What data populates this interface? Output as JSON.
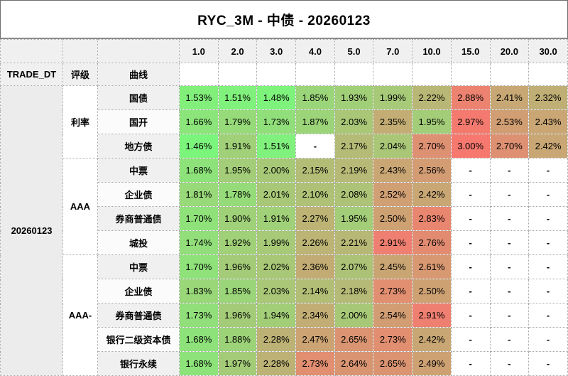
{
  "title": "RYC_3M - 中债 - 20260123",
  "table_header": {
    "trade_dt_label": "TRADE_DT",
    "rating_label": "评级",
    "curve_label": "曲线",
    "trade_dt_value": "20260123"
  },
  "chart_data": {
    "type": "heatmap",
    "title": "RYC_3M - 中债 - 20260123",
    "unit": "percent",
    "columns": [
      "1.0",
      "2.0",
      "3.0",
      "4.0",
      "5.0",
      "7.0",
      "10.0",
      "15.0",
      "20.0",
      "30.0"
    ],
    "missing_marker": "-",
    "color_scale": {
      "min": 1.46,
      "max": 3.0,
      "low": "#7cf57c",
      "high": "#f6786f",
      "missing_bg": "#ffffff"
    },
    "groups": [
      {
        "rating": "利率",
        "rows": [
          {
            "curve": "国债",
            "values": [
              "1.53%",
              "1.51%",
              "1.48%",
              "1.85%",
              "1.93%",
              "1.99%",
              "2.22%",
              "2.88%",
              "2.41%",
              "2.32%"
            ]
          },
          {
            "curve": "国开",
            "values": [
              "1.66%",
              "1.79%",
              "1.73%",
              "1.87%",
              "2.03%",
              "2.35%",
              "1.95%",
              "2.97%",
              "2.53%",
              "2.43%"
            ]
          },
          {
            "curve": "地方债",
            "values": [
              "1.46%",
              "1.91%",
              "1.51%",
              "-",
              "2.17%",
              "2.04%",
              "2.70%",
              "3.00%",
              "2.70%",
              "2.42%"
            ]
          }
        ]
      },
      {
        "rating": "AAA",
        "rows": [
          {
            "curve": "中票",
            "values": [
              "1.68%",
              "1.95%",
              "2.00%",
              "2.15%",
              "2.19%",
              "2.43%",
              "2.56%",
              "-",
              "-",
              "-"
            ]
          },
          {
            "curve": "企业债",
            "values": [
              "1.81%",
              "1.78%",
              "2.01%",
              "2.10%",
              "2.08%",
              "2.52%",
              "2.42%",
              "-",
              "-",
              "-"
            ]
          },
          {
            "curve": "券商普通债",
            "values": [
              "1.70%",
              "1.90%",
              "1.91%",
              "2.27%",
              "1.95%",
              "2.50%",
              "2.83%",
              "-",
              "-",
              "-"
            ]
          },
          {
            "curve": "城投",
            "values": [
              "1.74%",
              "1.92%",
              "1.99%",
              "2.26%",
              "2.21%",
              "2.91%",
              "2.76%",
              "-",
              "-",
              "-"
            ]
          }
        ]
      },
      {
        "rating": "AAA-",
        "rows": [
          {
            "curve": "中票",
            "values": [
              "1.70%",
              "1.96%",
              "2.02%",
              "2.36%",
              "2.07%",
              "2.45%",
              "2.61%",
              "-",
              "-",
              "-"
            ]
          },
          {
            "curve": "企业债",
            "values": [
              "1.83%",
              "1.85%",
              "2.03%",
              "2.14%",
              "2.18%",
              "2.73%",
              "2.50%",
              "-",
              "-",
              "-"
            ]
          },
          {
            "curve": "券商普通债",
            "values": [
              "1.73%",
              "1.96%",
              "1.94%",
              "2.34%",
              "2.00%",
              "2.54%",
              "2.91%",
              "-",
              "-",
              "-"
            ]
          },
          {
            "curve": "银行二级资本债",
            "values": [
              "1.68%",
              "1.88%",
              "2.28%",
              "2.47%",
              "2.65%",
              "2.73%",
              "2.42%",
              "-",
              "-",
              "-"
            ]
          },
          {
            "curve": "银行永续",
            "values": [
              "1.68%",
              "1.97%",
              "2.28%",
              "2.73%",
              "2.64%",
              "2.65%",
              "2.49%",
              "-",
              "-",
              "-"
            ]
          }
        ]
      }
    ]
  }
}
